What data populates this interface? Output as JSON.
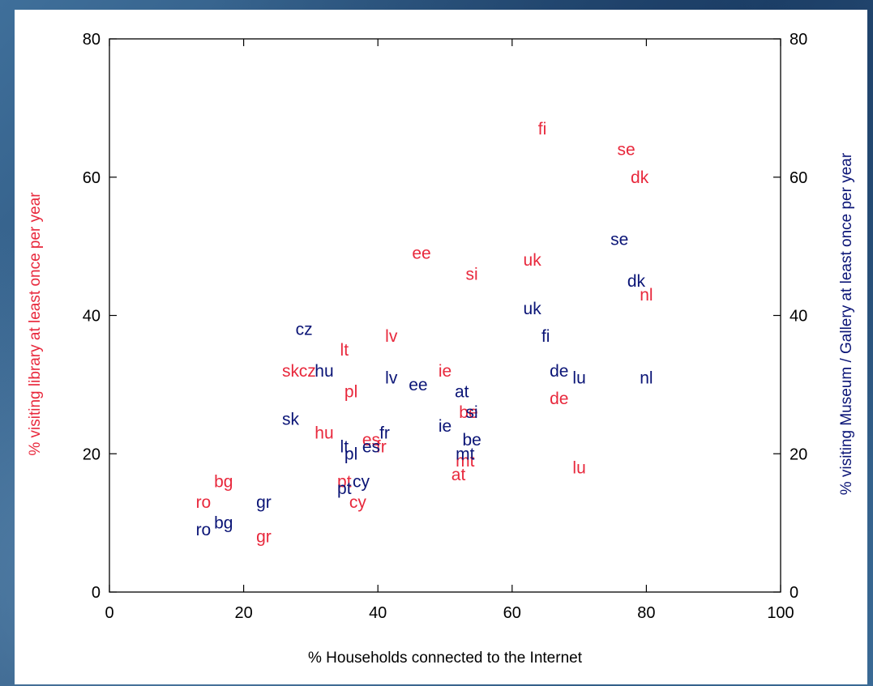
{
  "chart_data": {
    "type": "scatter",
    "title": "",
    "xlabel": "% Households connected to the Internet",
    "ylabel_left": "% visiting library at least once per year",
    "ylabel_right": "% visiting Museum / Gallery at least once per year",
    "xlim": [
      0,
      100
    ],
    "ylim": [
      0,
      80
    ],
    "x_ticks": [
      0,
      20,
      40,
      60,
      80,
      100
    ],
    "y_ticks": [
      0,
      20,
      40,
      60,
      80
    ],
    "grid": false,
    "legend": "none",
    "series": [
      {
        "color": "#e8283c",
        "points": [
          {
            "label": "fi",
            "x": 64.5,
            "y": 67
          },
          {
            "label": "se",
            "x": 77,
            "y": 64
          },
          {
            "label": "dk",
            "x": 79,
            "y": 60
          },
          {
            "label": "nl",
            "x": 80,
            "y": 43
          },
          {
            "label": "ee",
            "x": 46.5,
            "y": 49
          },
          {
            "label": "si",
            "x": 54,
            "y": 46
          },
          {
            "label": "uk",
            "x": 63,
            "y": 48
          },
          {
            "label": "lv",
            "x": 42,
            "y": 37
          },
          {
            "label": "lt",
            "x": 35,
            "y": 35
          },
          {
            "label": "sk",
            "x": 27,
            "y": 32
          },
          {
            "label": "cz",
            "x": 29.5,
            "y": 32
          },
          {
            "label": "pl",
            "x": 36,
            "y": 29
          },
          {
            "label": "ie",
            "x": 50,
            "y": 32
          },
          {
            "label": "be",
            "x": 53.5,
            "y": 26
          },
          {
            "label": "de",
            "x": 67,
            "y": 28
          },
          {
            "label": "hu",
            "x": 32,
            "y": 23
          },
          {
            "label": "es",
            "x": 39,
            "y": 22
          },
          {
            "label": "fr",
            "x": 40.5,
            "y": 21
          },
          {
            "label": "mt",
            "x": 53,
            "y": 19
          },
          {
            "label": "at",
            "x": 52,
            "y": 17
          },
          {
            "label": "lu",
            "x": 70,
            "y": 18
          },
          {
            "label": "pt",
            "x": 35,
            "y": 16
          },
          {
            "label": "cy",
            "x": 37,
            "y": 13
          },
          {
            "label": "bg",
            "x": 17,
            "y": 16
          },
          {
            "label": "ro",
            "x": 14,
            "y": 13
          },
          {
            "label": "gr",
            "x": 23,
            "y": 8
          }
        ]
      },
      {
        "color": "#0a1476",
        "points": [
          {
            "label": "se",
            "x": 76,
            "y": 51
          },
          {
            "label": "dk",
            "x": 78.5,
            "y": 45
          },
          {
            "label": "uk",
            "x": 63,
            "y": 41
          },
          {
            "label": "fi",
            "x": 65,
            "y": 37
          },
          {
            "label": "cz",
            "x": 29,
            "y": 38
          },
          {
            "label": "hu",
            "x": 32,
            "y": 32
          },
          {
            "label": "lv",
            "x": 42,
            "y": 31
          },
          {
            "label": "ee",
            "x": 46,
            "y": 30
          },
          {
            "label": "de",
            "x": 67,
            "y": 32
          },
          {
            "label": "lu",
            "x": 70,
            "y": 31
          },
          {
            "label": "nl",
            "x": 80,
            "y": 31
          },
          {
            "label": "at",
            "x": 52.5,
            "y": 29
          },
          {
            "label": "si",
            "x": 54,
            "y": 26
          },
          {
            "label": "sk",
            "x": 27,
            "y": 25
          },
          {
            "label": "ie",
            "x": 50,
            "y": 24
          },
          {
            "label": "fr",
            "x": 41,
            "y": 23
          },
          {
            "label": "be",
            "x": 54,
            "y": 22
          },
          {
            "label": "lt",
            "x": 35,
            "y": 21
          },
          {
            "label": "es",
            "x": 39,
            "y": 21
          },
          {
            "label": "pl",
            "x": 36,
            "y": 20
          },
          {
            "label": "mt",
            "x": 53,
            "y": 20
          },
          {
            "label": "cy",
            "x": 37.5,
            "y": 16
          },
          {
            "label": "pt",
            "x": 35,
            "y": 15
          },
          {
            "label": "gr",
            "x": 23,
            "y": 13
          },
          {
            "label": "bg",
            "x": 17,
            "y": 10
          },
          {
            "label": "ro",
            "x": 14,
            "y": 9
          }
        ]
      }
    ]
  }
}
